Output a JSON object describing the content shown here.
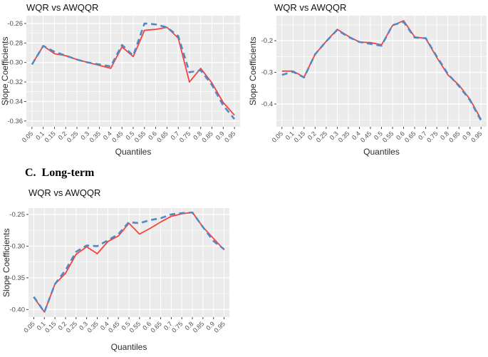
{
  "section_heading": "C.  Long-term",
  "chart_data": [
    {
      "type": "line",
      "title": "WQR vs AWQQR",
      "xlabel": "Quantiles",
      "ylabel": "Slope Coefficients",
      "legend": "none",
      "grid": "on",
      "panel_color": "#EBEBEB",
      "grid_color": "#FFFFFF",
      "tick_text_color": "#4D4D4D",
      "tick_mark_color": "#333333",
      "categories": [
        "0.05",
        "0.1",
        "0.15",
        "0.2",
        "0.25",
        "0.3",
        "0.35",
        "0.4",
        "0.45",
        "0.5",
        "0.55",
        "0.6",
        "0.65",
        "0.7",
        "0.75",
        "0.8",
        "0.85",
        "0.9",
        "0.95"
      ],
      "y_tick_values": [
        -0.26,
        -0.28,
        -0.3,
        -0.32,
        -0.34,
        -0.36
      ],
      "y_tick_labels": [
        "-0.26",
        "-0.28",
        "-0.30",
        "-0.32",
        "-0.34",
        "-0.36"
      ],
      "ylim": [
        -0.366,
        -0.252
      ],
      "series": [
        {
          "name": "WQR",
          "style": "solid",
          "color": "#F8413C",
          "values": [
            -0.302,
            -0.283,
            -0.291,
            -0.293,
            -0.297,
            -0.3,
            -0.303,
            -0.306,
            -0.284,
            -0.294,
            -0.267,
            -0.266,
            -0.264,
            -0.275,
            -0.32,
            -0.306,
            -0.321,
            -0.341,
            -0.354
          ]
        },
        {
          "name": "AWQQR",
          "style": "dashed",
          "color": "#5188C6",
          "values": [
            -0.302,
            -0.283,
            -0.289,
            -0.293,
            -0.297,
            -0.3,
            -0.302,
            -0.304,
            -0.282,
            -0.293,
            -0.26,
            -0.261,
            -0.264,
            -0.273,
            -0.31,
            -0.308,
            -0.323,
            -0.344,
            -0.358
          ]
        }
      ]
    },
    {
      "type": "line",
      "title": "WQR vs AWQQR",
      "xlabel": "Quantiles",
      "ylabel": "Slope Coefficients",
      "legend": "none",
      "grid": "on",
      "panel_color": "#EBEBEB",
      "grid_color": "#FFFFFF",
      "tick_text_color": "#4D4D4D",
      "tick_mark_color": "#333333",
      "categories": [
        "0.05",
        "0.1",
        "0.15",
        "0.2",
        "0.25",
        "0.3",
        "0.35",
        "0.4",
        "0.45",
        "0.5",
        "0.55",
        "0.6",
        "0.65",
        "0.7",
        "0.75",
        "0.8",
        "0.85",
        "0.9",
        "0.95"
      ],
      "y_tick_values": [
        -0.2,
        -0.3,
        -0.4
      ],
      "y_tick_labels": [
        "-0.2",
        "-0.3",
        "-0.4"
      ],
      "ylim": [
        -0.472,
        -0.121
      ],
      "series": [
        {
          "name": "WQR",
          "style": "solid",
          "color": "#F8413C",
          "values": [
            -0.296,
            -0.296,
            -0.315,
            -0.243,
            -0.202,
            -0.164,
            -0.186,
            -0.204,
            -0.206,
            -0.213,
            -0.152,
            -0.137,
            -0.188,
            -0.193,
            -0.253,
            -0.308,
            -0.34,
            -0.385,
            -0.448
          ]
        },
        {
          "name": "AWQQR",
          "style": "dashed",
          "color": "#5188C6",
          "values": [
            -0.308,
            -0.298,
            -0.316,
            -0.243,
            -0.202,
            -0.166,
            -0.188,
            -0.204,
            -0.21,
            -0.216,
            -0.151,
            -0.141,
            -0.19,
            -0.192,
            -0.25,
            -0.305,
            -0.343,
            -0.388,
            -0.452
          ]
        }
      ]
    },
    {
      "type": "line",
      "title": "WQR vs AWQQR",
      "xlabel": "Quantiles",
      "ylabel": "Slope Coefficients",
      "legend": "none",
      "grid": "on",
      "panel_color": "#EBEBEB",
      "grid_color": "#FFFFFF",
      "tick_text_color": "#4D4D4D",
      "tick_mark_color": "#333333",
      "categories": [
        "0.05",
        "0.1",
        "0.15",
        "0.2",
        "0.25",
        "0.3",
        "0.35",
        "0.4",
        "0.45",
        "0.5",
        "0.55",
        "0.6",
        "0.65",
        "0.7",
        "0.75",
        "0.8",
        "0.85",
        "0.9",
        "0.95"
      ],
      "y_tick_values": [
        -0.25,
        -0.3,
        -0.35,
        -0.4
      ],
      "y_tick_labels": [
        "-0.25",
        "-0.30",
        "-0.35",
        "-0.40"
      ],
      "ylim": [
        -0.412,
        -0.24
      ],
      "series": [
        {
          "name": "WQR",
          "style": "solid",
          "color": "#F8413C",
          "values": [
            -0.381,
            -0.404,
            -0.36,
            -0.343,
            -0.313,
            -0.301,
            -0.312,
            -0.293,
            -0.284,
            -0.264,
            -0.281,
            -0.272,
            -0.262,
            -0.253,
            -0.249,
            -0.247,
            -0.27,
            -0.288,
            -0.306
          ]
        },
        {
          "name": "AWQQR",
          "style": "dashed",
          "color": "#5188C6",
          "values": [
            -0.38,
            -0.404,
            -0.36,
            -0.338,
            -0.309,
            -0.299,
            -0.3,
            -0.291,
            -0.281,
            -0.262,
            -0.264,
            -0.259,
            -0.256,
            -0.25,
            -0.248,
            -0.247,
            -0.27,
            -0.292,
            -0.305
          ]
        }
      ]
    }
  ]
}
